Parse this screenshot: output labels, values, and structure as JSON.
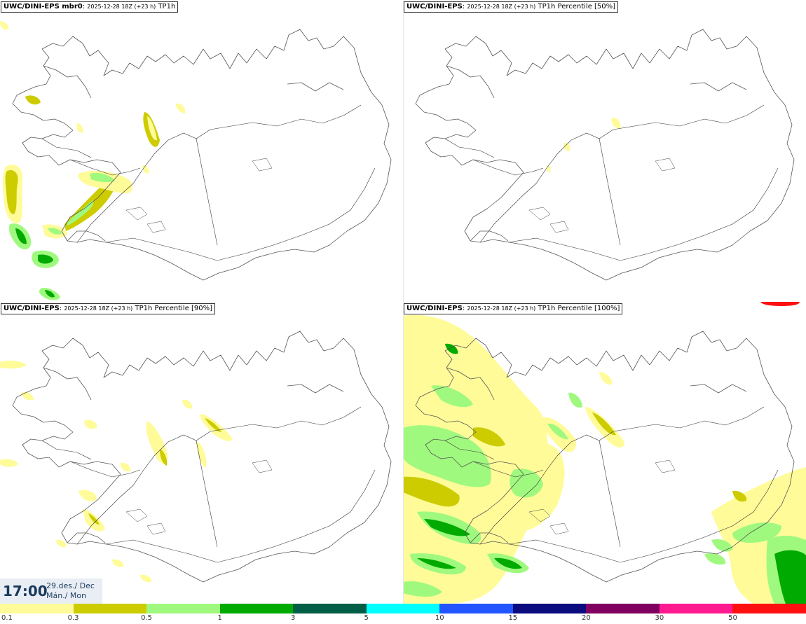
{
  "panels": [
    {
      "model": "UWC/DINI-EPS mbr0",
      "run": "2025-12-28 18Z (+23 h)",
      "field": "TP1h"
    },
    {
      "model": "UWC/DINI-EPS",
      "run": "2025-12-28 18Z (+23 h)",
      "field": "TP1h Percentile [50%]"
    },
    {
      "model": "UWC/DINI-EPS",
      "run": "2025-12-28 18Z (+23 h)",
      "field": "TP1h Percentile [90%]"
    },
    {
      "model": "UWC/DINI-EPS",
      "run": "2025-12-28 18Z (+23 h)",
      "field": "TP1h Percentile [100%]"
    }
  ],
  "valid_time": {
    "time": "17:00",
    "date_line": "29.des./ Dec",
    "day_line": "Mán./ Mon"
  },
  "colorbar": {
    "colors": [
      "#fffb98",
      "#cccc00",
      "#a0f97f",
      "#00aa00",
      "#005e46",
      "#00ffff",
      "#2255ff",
      "#0b0b80",
      "#800060",
      "#ff1a90",
      "#ff1010"
    ],
    "tick_labels": [
      "0.1",
      "0.3",
      "0.5",
      "1",
      "3",
      "5",
      "10",
      "15",
      "20",
      "30",
      "50"
    ]
  },
  "legend_colors": {
    "light_yellow": "#fffb98",
    "olive": "#cccc00",
    "light_green": "#a0f97f",
    "green": "#00aa00"
  }
}
